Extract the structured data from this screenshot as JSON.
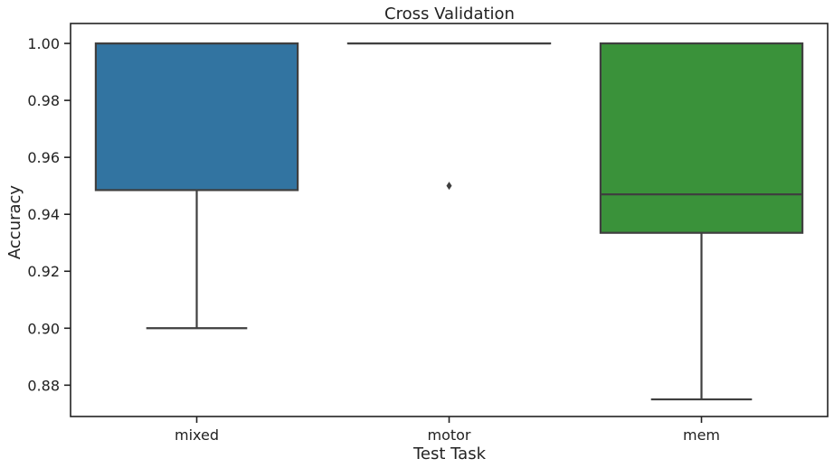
{
  "chart_data": {
    "type": "box",
    "title": "Cross Validation",
    "xlabel": "Test Task",
    "ylabel": "Accuracy",
    "categories": [
      "mixed",
      "motor",
      "mem"
    ],
    "ylim": [
      0.869,
      1.007
    ],
    "yticks": [
      0.88,
      0.9,
      0.92,
      0.94,
      0.96,
      0.98,
      1.0
    ],
    "ytick_labels": [
      "0.88",
      "0.90",
      "0.92",
      "0.94",
      "0.96",
      "0.98",
      "1.00"
    ],
    "grid": false,
    "legend": "none",
    "boxes": [
      {
        "category": "mixed",
        "min": 0.9,
        "q1": 0.9485,
        "median": 1.0,
        "q3": 1.0,
        "max": 1.0,
        "outliers": [],
        "color": "#3274a1"
      },
      {
        "category": "motor",
        "min": 1.0,
        "q1": 1.0,
        "median": 1.0,
        "q3": 1.0,
        "max": 1.0,
        "outliers": [
          0.95
        ],
        "color": "#e1812c"
      },
      {
        "category": "mem",
        "min": 0.875,
        "q1": 0.9335,
        "median": 0.947,
        "q3": 1.0,
        "max": 1.0,
        "outliers": [],
        "color": "#3a923a"
      }
    ],
    "line_color": "#3f3f3f"
  }
}
